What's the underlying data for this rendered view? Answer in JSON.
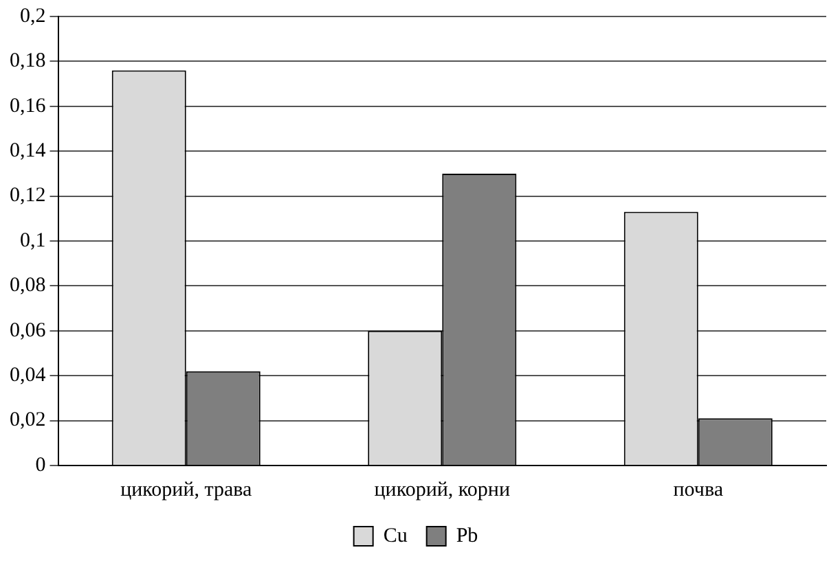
{
  "chart_data": {
    "type": "bar",
    "categories": [
      "цикорий, трава",
      "цикорий, корни",
      "почва"
    ],
    "series": [
      {
        "name": "Cu",
        "color": "#d9d9d9",
        "values": [
          0.176,
          0.06,
          0.113
        ]
      },
      {
        "name": "Pb",
        "color": "#7f7f7f",
        "values": [
          0.042,
          0.13,
          0.021
        ]
      }
    ],
    "ylim": [
      0,
      0.2
    ],
    "yticks": [
      0,
      {
        "value": 0.02,
        "label": "0,02"
      },
      {
        "value": 0.04,
        "label": "0,04"
      },
      {
        "value": 0.06,
        "label": "0,06"
      },
      {
        "value": 0.08,
        "label": "0,08"
      },
      {
        "value": 0.1,
        "label": "0,1"
      },
      {
        "value": 0.12,
        "label": "0,12"
      },
      {
        "value": 0.14,
        "label": "0,14"
      },
      {
        "value": 0.16,
        "label": "0,16"
      },
      {
        "value": 0.18,
        "label": "0,18"
      },
      {
        "value": 0.2,
        "label": "0,2"
      }
    ],
    "grid": "y",
    "legend": "bottom"
  }
}
